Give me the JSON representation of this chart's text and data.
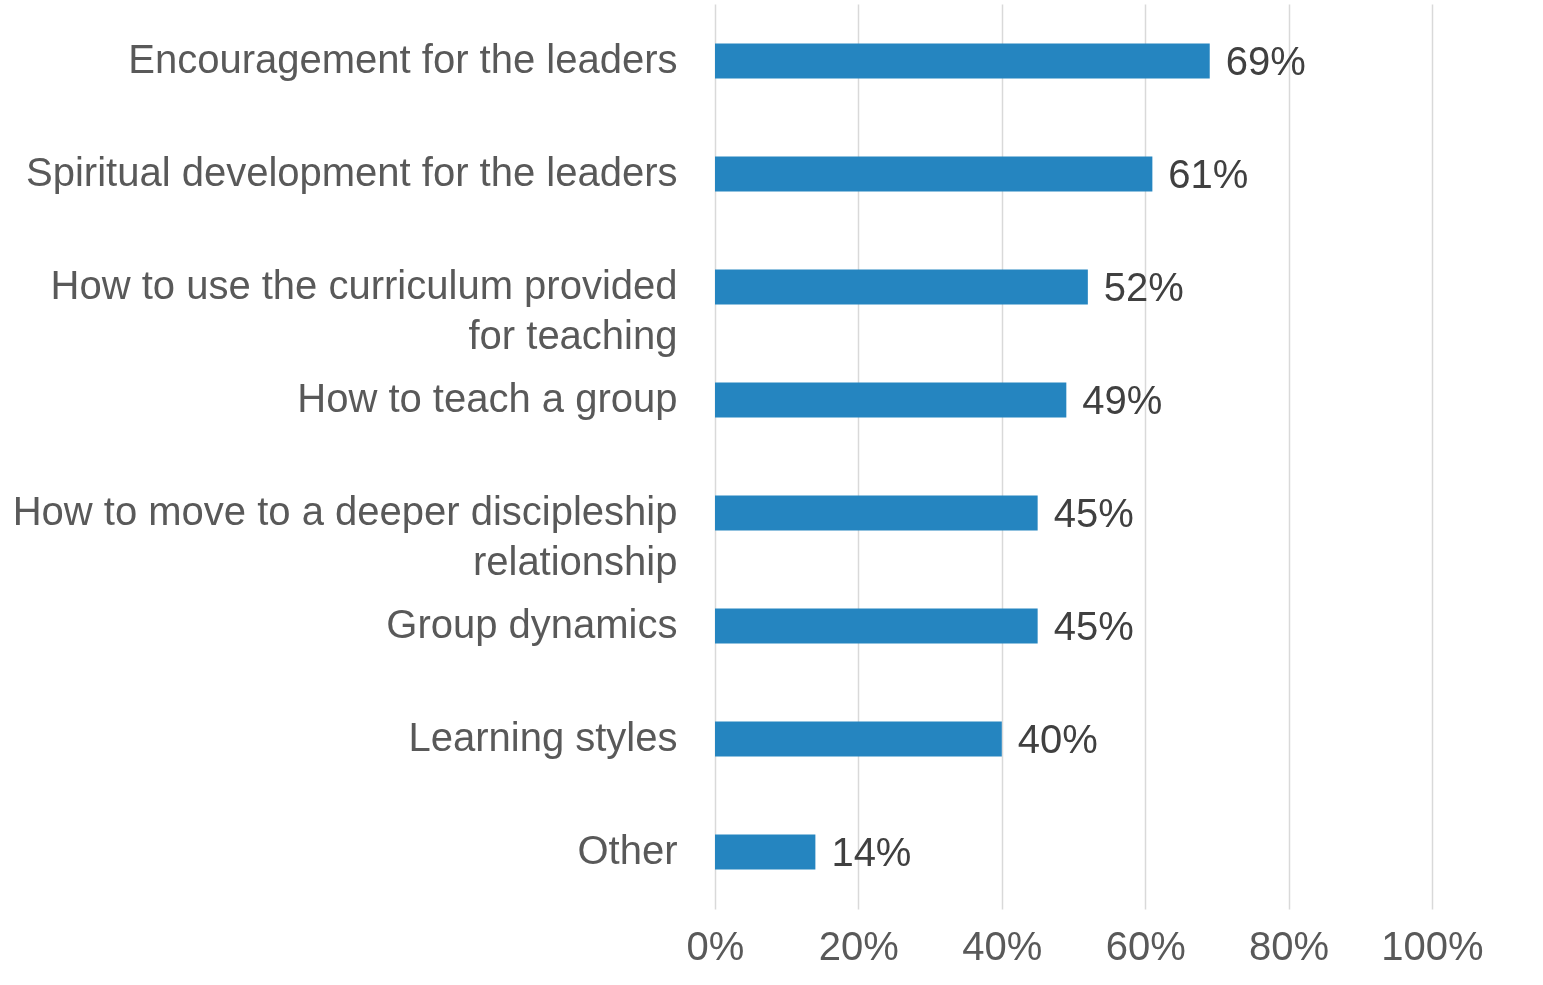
{
  "chart_data": {
    "type": "bar",
    "orientation": "horizontal",
    "categories": [
      "Encouragement for the leaders",
      "Spiritual development for the leaders",
      "How to use the curriculum provided for teaching",
      "How to teach a group",
      "How to move to a deeper discipleship relationship",
      "Group dynamics",
      "Learning styles",
      "Other"
    ],
    "values": [
      69,
      61,
      52,
      49,
      45,
      45,
      40,
      14
    ],
    "value_labels": [
      "69%",
      "61%",
      "52%",
      "49%",
      "45%",
      "45%",
      "40%",
      "14%"
    ],
    "color": "#2585c0",
    "xlim": [
      0,
      100
    ],
    "xticks": [
      {
        "value": 0,
        "label": "0%"
      },
      {
        "value": 20,
        "label": "20%"
      },
      {
        "value": 40,
        "label": "40%"
      },
      {
        "value": 60,
        "label": "60%"
      },
      {
        "value": 80,
        "label": "80%"
      },
      {
        "value": 100,
        "label": "100%"
      }
    ],
    "grid": "x"
  }
}
